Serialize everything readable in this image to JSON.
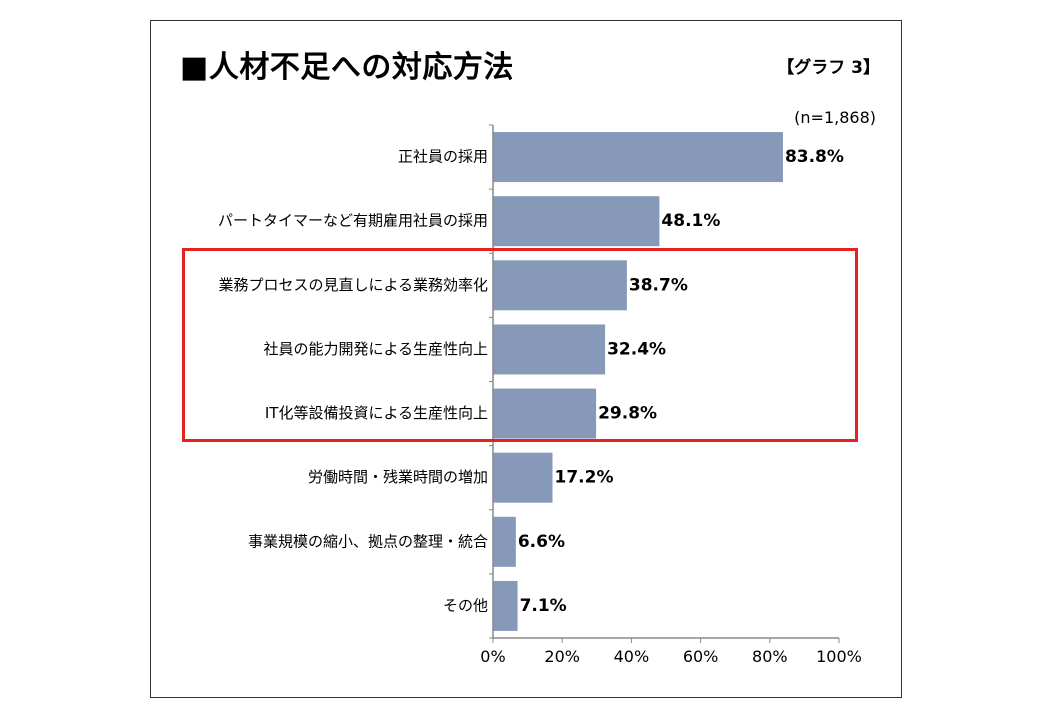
{
  "header": {
    "title": "■人材不足への対応方法",
    "graph_label": "【グラフ 3】",
    "sample_size": "(n=1,868)"
  },
  "colors": {
    "bar": "#8799b9",
    "highlight": "#e32222",
    "axis": "#888888"
  },
  "chart_data": {
    "type": "bar",
    "orientation": "horizontal",
    "title": "■人材不足への対応方法",
    "categories": [
      "正社員の採用",
      "パートタイマーなど有期雇用社員の採用",
      "業務プロセスの見直しによる業務効率化",
      "社員の能力開発による生産性向上",
      "IT化等設備投資による生産性向上",
      "労働時間・残業時間の増加",
      "事業規模の縮小、拠点の整理・統合",
      "その他"
    ],
    "values": [
      83.8,
      48.1,
      38.7,
      32.4,
      29.8,
      17.2,
      6.6,
      7.1
    ],
    "value_labels": [
      "83.8%",
      "48.1%",
      "38.7%",
      "32.4%",
      "29.8%",
      "17.2%",
      "6.6%",
      "7.1%"
    ],
    "xlim": [
      0,
      100
    ],
    "xticks": [
      "0%",
      "20%",
      "40%",
      "60%",
      "80%",
      "100%"
    ],
    "highlighted_categories": [
      2,
      3,
      4
    ],
    "grid": false,
    "legend": "none"
  }
}
